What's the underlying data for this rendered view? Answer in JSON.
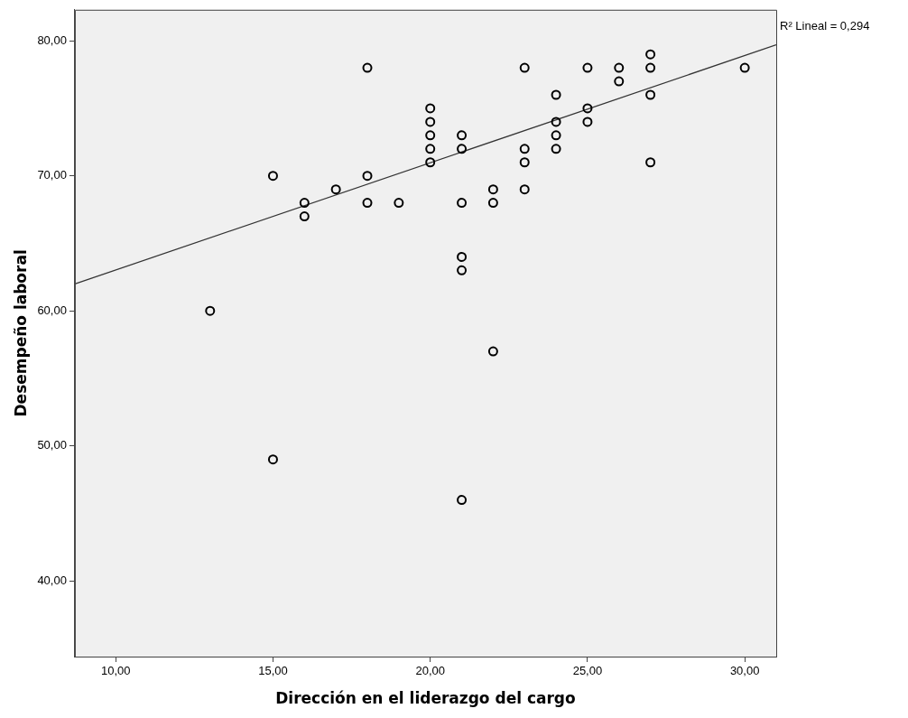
{
  "chart_data": {
    "type": "scatter",
    "xlabel": "Dirección en el liderazgo del cargo",
    "ylabel": "Desempeño laboral",
    "annotations": [
      "R² Lineal = 0,294"
    ],
    "xlim": [
      8.7,
      31
    ],
    "xticks": [
      {
        "value": 10,
        "label": "10,00"
      },
      {
        "value": 15,
        "label": "15,00"
      },
      {
        "value": 20,
        "label": "20,00"
      },
      {
        "value": 25,
        "label": "25,00"
      },
      {
        "value": 30,
        "label": "30,00"
      }
    ],
    "ylim": [
      34.4,
      82.3
    ],
    "yticks": [
      {
        "value": 40,
        "label": "40,00"
      },
      {
        "value": 50,
        "label": "50,00"
      },
      {
        "value": 60,
        "label": "60,00"
      },
      {
        "value": 70,
        "label": "70,00"
      },
      {
        "value": 80,
        "label": "80,00"
      }
    ],
    "grid": false,
    "legend": false,
    "marker": "circle",
    "series": [
      {
        "color": "#000000",
        "x": [
          13,
          15,
          15,
          16,
          16,
          17,
          18,
          18,
          18,
          19,
          20,
          20,
          20,
          20,
          20,
          21,
          21,
          21,
          21,
          21,
          21,
          22,
          22,
          22,
          23,
          23,
          23,
          23,
          24,
          24,
          24,
          24,
          25,
          25,
          25,
          26,
          26,
          27,
          27,
          27,
          27,
          30
        ],
        "values": [
          60,
          70,
          49,
          68,
          67,
          69,
          78,
          70,
          68,
          68,
          75,
          74,
          73,
          72,
          71,
          73,
          72,
          68,
          64,
          63,
          46,
          69,
          68,
          57,
          78,
          72,
          71,
          69,
          76,
          74,
          73,
          72,
          78,
          75,
          74,
          78,
          77,
          79,
          78,
          76,
          71,
          78
        ]
      },
      {
        "type": "line",
        "color": "#333333",
        "x": [
          8.7,
          31
        ],
        "values": [
          62.0,
          79.7
        ],
        "line_style": "solid",
        "marker": "none"
      }
    ]
  }
}
